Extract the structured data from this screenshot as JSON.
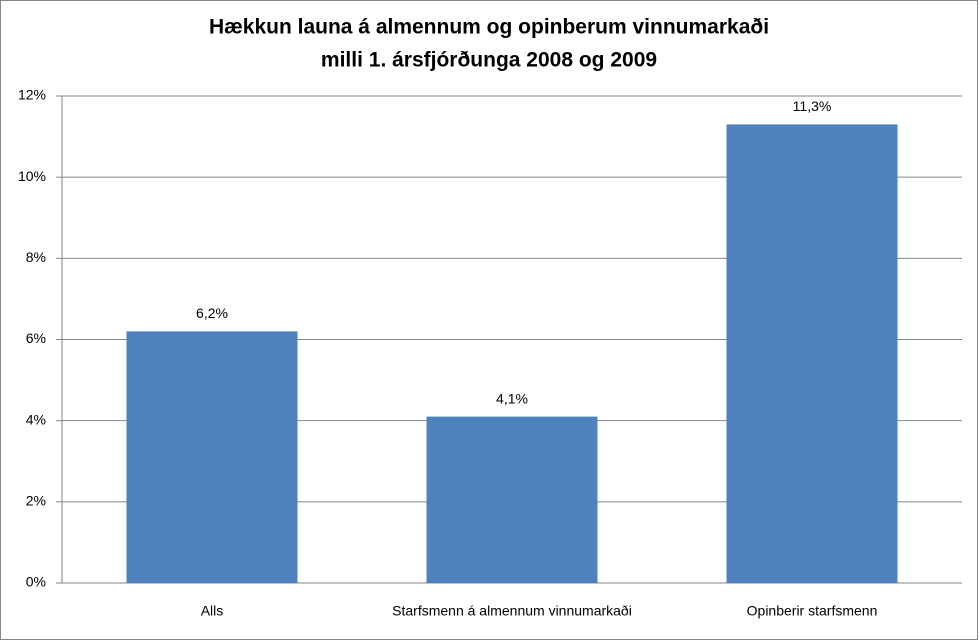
{
  "chart_data": {
    "type": "bar",
    "title": [
      "Hækkun launa á almennum og opinberum vinnumarkaði",
      "milli 1. ársfjórðunga 2008 og 2009"
    ],
    "categories": [
      "Alls",
      "Starfsmenn á almennum vinnumarkaði",
      "Opinberir starfsmenn"
    ],
    "values": [
      6.2,
      4.1,
      11.3
    ],
    "value_labels": [
      "6,2%",
      "4,1%",
      "11,3%"
    ],
    "color": "#4f81bd",
    "ylim": [
      0,
      12
    ],
    "yticks": [
      {
        "value": 0,
        "label": "0%"
      },
      {
        "value": 2,
        "label": "2%"
      },
      {
        "value": 4,
        "label": "4%"
      },
      {
        "value": 6,
        "label": "6%"
      },
      {
        "value": 8,
        "label": "8%"
      },
      {
        "value": 10,
        "label": "10%"
      },
      {
        "value": 12,
        "label": "12%"
      }
    ],
    "grid": true
  }
}
